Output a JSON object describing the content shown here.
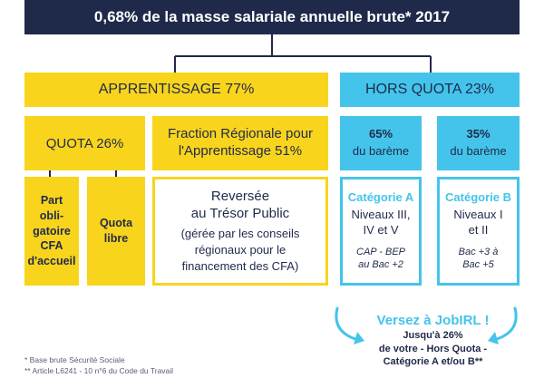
{
  "banner": {
    "title": "0,68% de la masse salariale annuelle brute* 2017"
  },
  "apprentissage": {
    "label": "APPRENTISSAGE 77%"
  },
  "hors_quota": {
    "label": "HORS QUOTA 23%"
  },
  "quota": {
    "label": "QUOTA 26%"
  },
  "fraction_regionale": {
    "line1": "Fraction Régionale pour",
    "line2": "l'Apprentissage 51%"
  },
  "bareme_65": {
    "pct": "65%",
    "label": "du barème"
  },
  "bareme_35": {
    "pct": "35%",
    "label": "du barème"
  },
  "part_obligatoire": {
    "lines": [
      "Part",
      "obli-",
      "gatoire",
      "CFA",
      "d'accueil"
    ]
  },
  "quota_libre": {
    "lines": [
      "Quota",
      "libre"
    ]
  },
  "reversee": {
    "title_line1": "Reversée",
    "title_line2": "au Trésor Public",
    "note_lines": [
      "(gérée par les conseils",
      "régionaux pour le",
      "financement des CFA)"
    ]
  },
  "categorie_a": {
    "title": "Catégorie A",
    "levels_line1": "Niveaux III,",
    "levels_line2": "IV et V",
    "note_line1": "CAP - BEP",
    "note_line2": "au Bac +2"
  },
  "categorie_b": {
    "title": "Catégorie B",
    "levels_line1": "Niveaux I",
    "levels_line2": "et II",
    "note_line1": "Bac +3 à",
    "note_line2": "Bac +5"
  },
  "cta": {
    "title": "Versez à JobIRL !",
    "line1": "Jusqu'à 26%",
    "line2": "de votre - Hors Quota -",
    "line3": "Catégorie A et/ou B**"
  },
  "footnotes": {
    "line1": "* Base brute Sécurité Sociale",
    "line2": "** Article L6241 - 10 n°6 du Code du Travail"
  },
  "colors": {
    "navy": "#1f2a4a",
    "yellow": "#f9d41c",
    "blue": "#44c4eb"
  }
}
